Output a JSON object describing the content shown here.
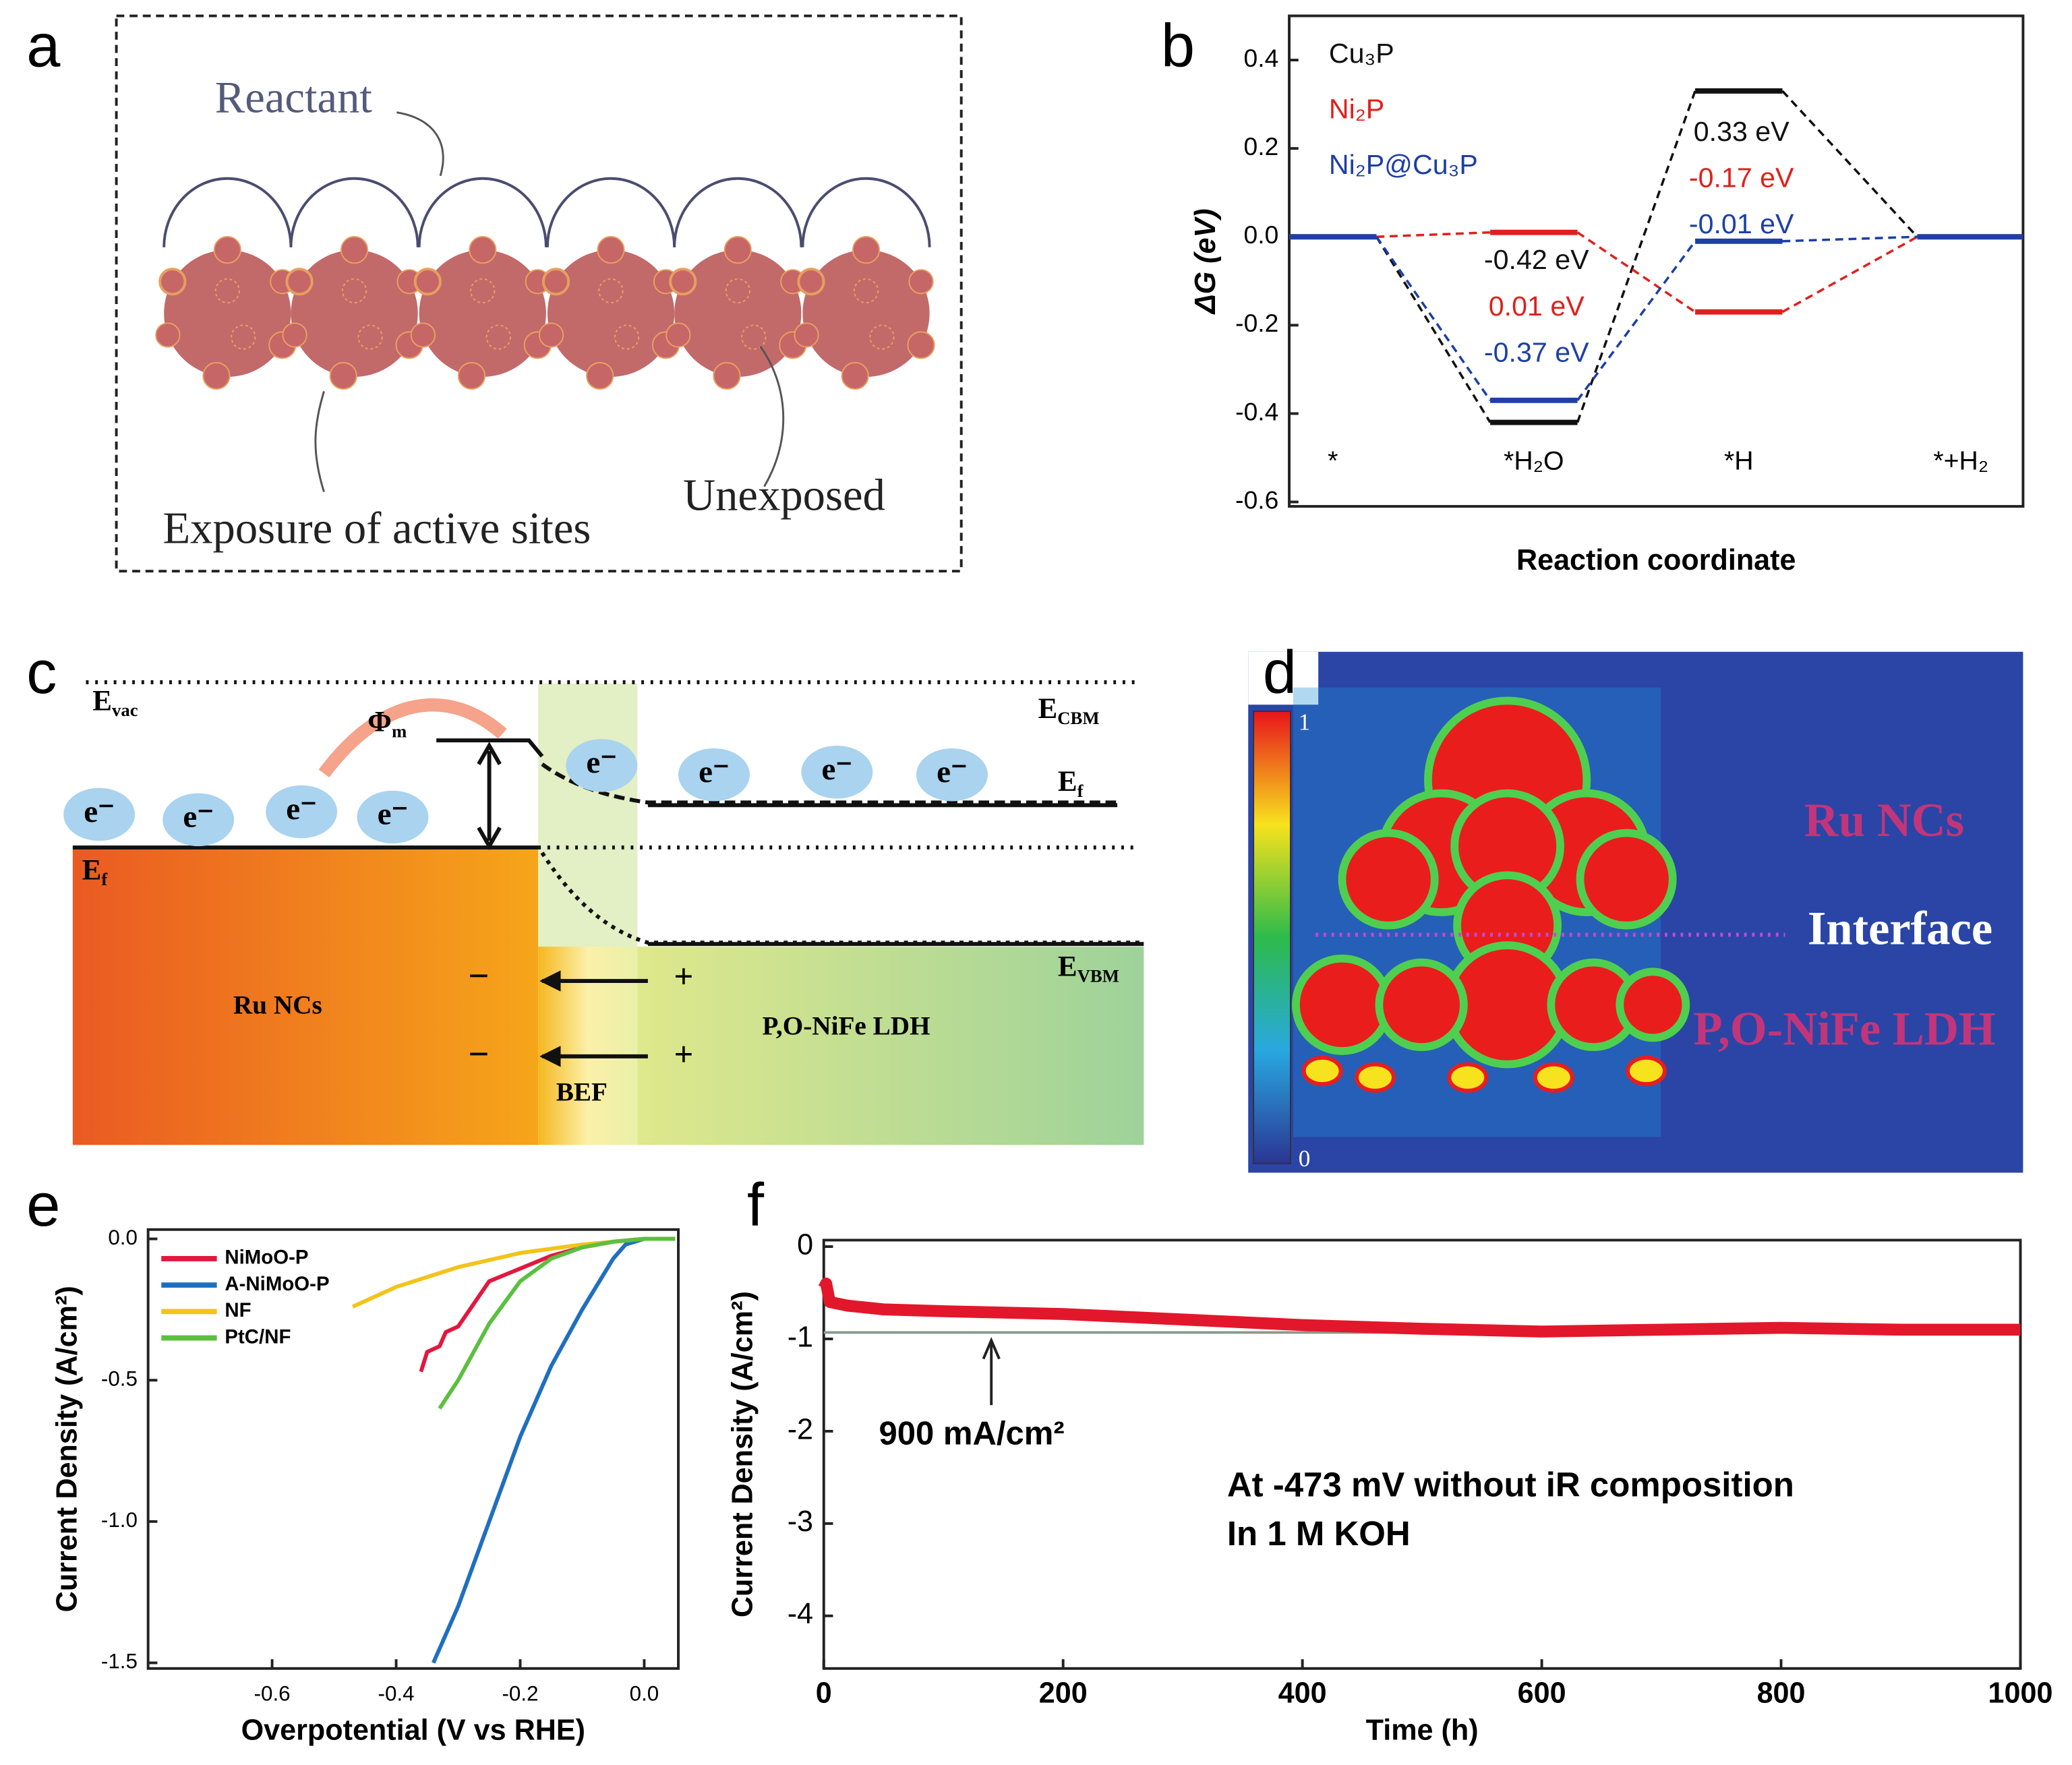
{
  "panel_labels": [
    "a",
    "b",
    "c",
    "d",
    "e",
    "f"
  ],
  "diagram_a": {
    "reactant": "Reactant",
    "unexposed": "Unexposed",
    "exposure": "Exposure of active sites"
  },
  "diagram_c": {
    "e_vac": {
      "main": "E",
      "sub": "vac"
    },
    "phi_m": {
      "main": "Φ",
      "sub": "m"
    },
    "e_cbm": {
      "main": "E",
      "sub": "CBM"
    },
    "e_f_right": {
      "main": "E",
      "sub": "f"
    },
    "e_f_left": {
      "main": "E",
      "sub": "f"
    },
    "e_vbm": {
      "main": "E",
      "sub": "VBM"
    },
    "electrons": [
      "e⁻",
      "e⁻",
      "e⁻",
      "e⁻",
      "e⁻",
      "e⁻",
      "e⁻",
      "e⁻"
    ],
    "ru": "Ru NCs",
    "ldh": "P,O-NiFe LDH",
    "bef": "BEF",
    "minus": [
      "−",
      "−"
    ],
    "plus": [
      "+",
      "+"
    ]
  },
  "image_d": {
    "ru": "Ru NCs",
    "interface": "Interface",
    "ldh": "P,O-NiFe LDH",
    "colorbar": [
      "1",
      "0"
    ]
  },
  "chart_data": [
    {
      "type": "energy",
      "ylabel": "ΔG (eV)",
      "xlabel": "Reaction coordinate",
      "categories": [
        "*",
        "*H₂O",
        "*H",
        "*+H₂"
      ],
      "ylim": [
        -0.61,
        0.5
      ],
      "yticks": [
        0.4,
        0.2,
        {
          "value": 0,
          "label": "0.0"
        },
        -0.2,
        -0.4,
        -0.6
      ],
      "series": [
        {
          "name": "Cu₃P",
          "color": "#111111",
          "values": [
            0,
            -0.42,
            0.33,
            0
          ],
          "value_labels": [
            null,
            "-0.42 eV",
            "0.33 eV",
            null
          ]
        },
        {
          "name": "Ni₂P",
          "color": "#e0201b",
          "values": [
            0,
            0.01,
            -0.17,
            0
          ],
          "value_labels": [
            null,
            "0.01 eV",
            "-0.17 eV",
            null
          ]
        },
        {
          "name": "Ni₂P@Cu₃P",
          "color": "#1d3fa6",
          "values": [
            0,
            -0.37,
            -0.01,
            0
          ],
          "value_labels": [
            null,
            "-0.37 eV",
            "-0.01 eV",
            null
          ]
        }
      ]
    },
    {
      "type": "line",
      "xlabel": "Overpotential (V vs RHE)",
      "ylabel": "Current Density (A/cm²)",
      "xlim": [
        -0.8,
        0.055
      ],
      "xticks": [
        -0.6,
        -0.4,
        -0.2,
        {
          "value": 0,
          "label": "0.0"
        }
      ],
      "ylim": [
        -1.52,
        0.033
      ],
      "yticks": [
        {
          "value": 0,
          "label": "0.0"
        },
        -0.5,
        {
          "value": -1,
          "label": "-1.0"
        },
        -1.5
      ],
      "legend": "upper left",
      "series": [
        {
          "name": "NiMoO-P",
          "color": "#e3173f",
          "x": [
            -0.36,
            -0.35,
            -0.33,
            -0.32,
            -0.3,
            -0.25,
            -0.15,
            -0.1,
            -0.05,
            0,
            0.05
          ],
          "values": [
            -0.47,
            -0.4,
            -0.38,
            -0.33,
            -0.31,
            -0.15,
            -0.06,
            -0.03,
            -0.01,
            0,
            0
          ]
        },
        {
          "name": "A-NiMoO-P",
          "color": "#1f6fc0",
          "x": [
            -0.34,
            -0.3,
            -0.25,
            -0.2,
            -0.15,
            -0.1,
            -0.05,
            -0.03,
            0,
            0.05
          ],
          "values": [
            -1.5,
            -1.3,
            -1.0,
            -0.7,
            -0.45,
            -0.25,
            -0.07,
            -0.02,
            0,
            0
          ]
        },
        {
          "name": "NF",
          "color": "#f2c31a",
          "x": [
            -0.47,
            -0.4,
            -0.3,
            -0.2,
            -0.1,
            0,
            0.05
          ],
          "values": [
            -0.24,
            -0.17,
            -0.1,
            -0.05,
            -0.02,
            0,
            0
          ]
        },
        {
          "name": "PtC/NF",
          "color": "#5cbf3f",
          "x": [
            -0.33,
            -0.3,
            -0.27,
            -0.25,
            -0.2,
            -0.15,
            -0.1,
            -0.05,
            0,
            0.05
          ],
          "values": [
            -0.6,
            -0.5,
            -0.38,
            -0.3,
            -0.15,
            -0.07,
            -0.03,
            -0.01,
            0,
            0
          ]
        }
      ]
    },
    {
      "type": "line",
      "xlabel": "Time (h)",
      "ylabel": "Current Density (A/cm²)",
      "xlim": [
        0,
        1000
      ],
      "xticks": [
        0,
        200,
        400,
        600,
        800,
        1000
      ],
      "ylim": [
        -4.57,
        0.07
      ],
      "yticks": [
        0,
        -1,
        -2,
        -3,
        -4
      ],
      "color": "#e3172b",
      "x": [
        0,
        2,
        5,
        20,
        50,
        100,
        200,
        300,
        400,
        500,
        600,
        700,
        800,
        900,
        1000
      ],
      "values": [
        -0.45,
        -0.4,
        -0.6,
        -0.64,
        -0.68,
        -0.7,
        -0.73,
        -0.79,
        -0.85,
        -0.89,
        -0.92,
        -0.9,
        -0.88,
        -0.9,
        -0.9
      ],
      "reference_line": -0.93,
      "annotations": [
        {
          "text": "900 mA/cm²",
          "x": 140
        },
        {
          "text": "At -473 mV without iR composition"
        },
        {
          "text": "In 1 M KOH"
        }
      ]
    }
  ]
}
